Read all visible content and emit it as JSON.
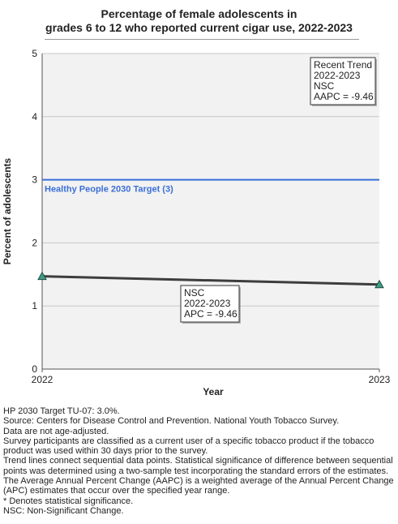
{
  "title_line1": "Percentage of female adolescents in",
  "title_line2": "grades 6 to 12 who reported current cigar use, 2022-2023",
  "chart_data": {
    "type": "line",
    "x": [
      "2022",
      "2023"
    ],
    "series": [
      {
        "values": [
          1.47,
          1.34
        ]
      }
    ],
    "xlabel": "Year",
    "ylabel": "Percent of adolescents",
    "ylim": [
      0,
      5
    ],
    "yticks": [
      0,
      1,
      2,
      3,
      4,
      5
    ],
    "grid": true,
    "target": {
      "value": 3,
      "label": "Healthy People 2030 Target (3)",
      "color": "#3a6fd8"
    },
    "series_color": "#3d3d3d",
    "marker_color": "#3f9c84",
    "annotations": {
      "recent_trend": [
        "Recent Trend",
        "2022-2023",
        "NSC",
        "AAPC = -9.46"
      ],
      "segment": [
        "NSC",
        "2022-2023",
        "APC = -9.46"
      ]
    }
  },
  "notes": [
    "HP 2030 Target TU-07: 3.0%.",
    "Source: Centers for Disease Control and Prevention. National Youth Tobacco Survey.",
    "Data are not age-adjusted.",
    "Survey participants are classified as a current user of a specific tobacco product if the tobacco product was used within 30 days prior to the survey.",
    "Trend lines connect sequential data points. Statistical significance of difference between sequential points was determined using a two-sample test incorporating the standard errors of the estimates.",
    "The Average Annual Percent Change (AAPC) is a weighted average of the Annual Percent Change (APC) estimates that occur over the specified year range.",
    "* Denotes statistical significance.",
    "NSC: Non-Significant Change."
  ]
}
